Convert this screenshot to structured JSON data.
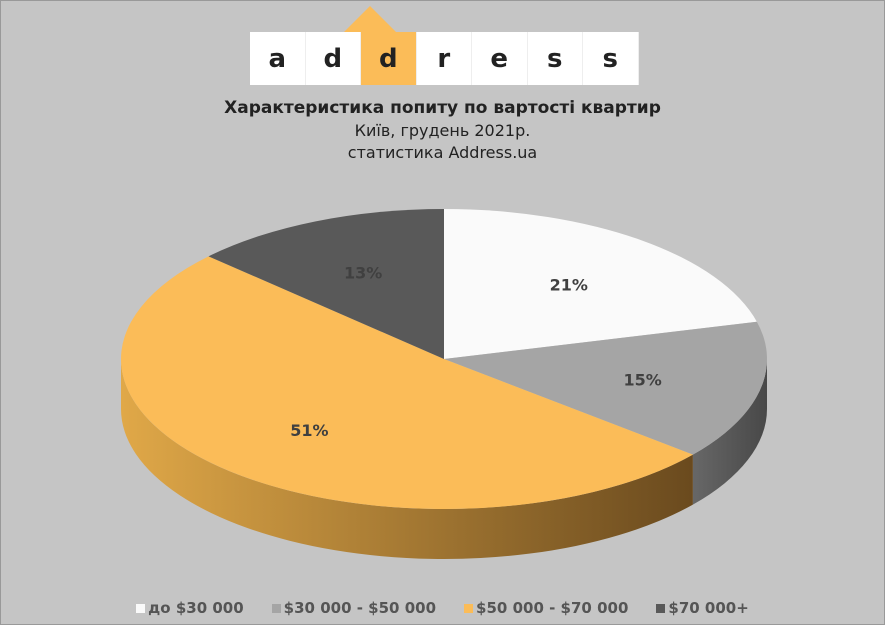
{
  "logo": {
    "letters": [
      "a",
      "d",
      "d",
      "r",
      "e",
      "s",
      "s"
    ],
    "highlight_index": 2
  },
  "chart_data": {
    "type": "pie",
    "title": "Характеристика попиту по вартості квартир",
    "subtitle_1": "Київ, грудень 2021р.",
    "subtitle_2": "статистика  Address.ua",
    "categories": [
      "до $30 000",
      "$30 000 - $50 000",
      "$50 000 - $70 000",
      "$70 000+"
    ],
    "values": [
      21,
      15,
      51,
      13
    ],
    "labels": [
      "21%",
      "15%",
      "51%",
      "13%"
    ],
    "colors": [
      "#fafafa",
      "#a5a5a5",
      "#fbbc58",
      "#595959"
    ],
    "side_colors": [
      "#d8d8d8",
      "#484848",
      "#a77a30",
      "#3a3a3a"
    ],
    "legend_position": "bottom"
  }
}
